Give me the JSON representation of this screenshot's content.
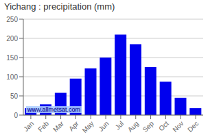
{
  "chart_data": {
    "type": "bar",
    "title": "Yichang : precipitation (mm)",
    "categories": [
      "Jan",
      "Feb",
      "Mar",
      "Apr",
      "May",
      "Jun",
      "Jul",
      "Aug",
      "Sep",
      "Oct",
      "Nov",
      "Dec"
    ],
    "values": [
      18,
      28,
      58,
      95,
      122,
      150,
      210,
      185,
      125,
      87,
      45,
      18
    ],
    "color": "#0000ee",
    "ylim": [
      0,
      250
    ],
    "yticks": [
      0,
      50,
      100,
      150,
      200,
      250
    ],
    "grid": true,
    "annotations": [
      "www.allmetsat.com"
    ]
  }
}
